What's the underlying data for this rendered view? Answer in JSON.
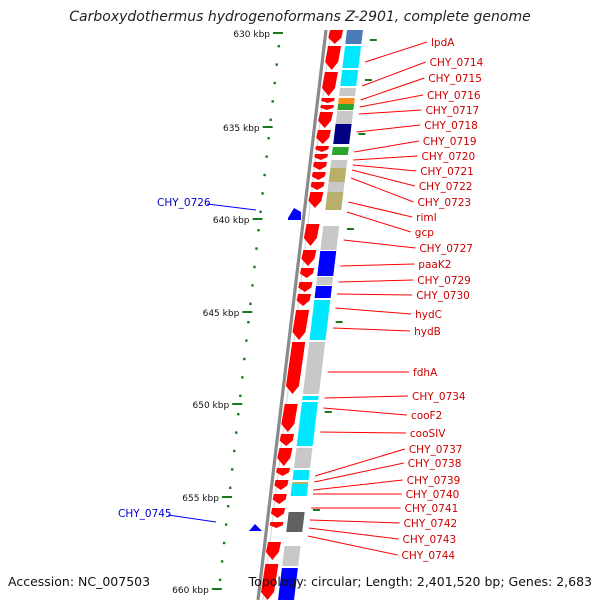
{
  "title": "Carboxydothermus hydrogenoformans Z-2901, complete genome",
  "footer": {
    "accession": "Accession: NC_007503",
    "topology": "Topology: circular; Length: 2,401,520 bp; Genes: 2,683"
  },
  "colors": {
    "red": "#ff0000",
    "cyan": "#00e8ff",
    "blue": "#0000ff",
    "navy": "#000080",
    "steelblue": "#4a7ab8",
    "gray": "#c8c8c8",
    "darkgray": "#606060",
    "olive": "#b8b06a",
    "green": "#2ca52c",
    "orange": "#ff8c1a",
    "label_red": "#cc0000",
    "label_blue": "#0000cc",
    "tick_green": "#1a7a1a",
    "axis_gray": "#8a8a8a"
  },
  "scale_labels": [
    "630 kbp",
    "635 kbp",
    "640 kbp",
    "645 kbp",
    "650 kbp",
    "655 kbp",
    "660 kbp"
  ],
  "forward_genes": [
    "lpdA",
    "CHY_0714",
    "CHY_0715",
    "CHY_0716",
    "CHY_0717",
    "CHY_0718",
    "CHY_0719",
    "CHY_0720",
    "CHY_0721",
    "CHY_0722",
    "CHY_0723",
    "rimI",
    "gcp",
    "CHY_0727",
    "paaK2",
    "CHY_0729",
    "CHY_0730",
    "hydC",
    "hydB",
    "fdhA",
    "CHY_0734",
    "cooF2",
    "cooSIV",
    "CHY_0737",
    "CHY_0738",
    "CHY_0739",
    "CHY_0740",
    "CHY_0741",
    "CHY_0742",
    "CHY_0743",
    "CHY_0744"
  ],
  "reverse_genes": [
    "CHY_0726",
    "CHY_0745"
  ]
}
